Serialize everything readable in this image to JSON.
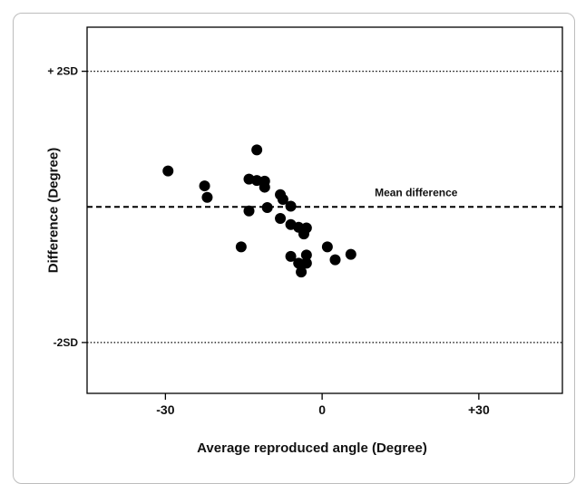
{
  "chart_data": {
    "type": "scatter",
    "title": "",
    "xlabel": "Average reproduced angle (Degree)",
    "ylabel": "Difference (Degree)",
    "xlim": [
      -45,
      46
    ],
    "ylim": [
      -2.75,
      2.65
    ],
    "x_ticks": [
      {
        "value": -30,
        "label": "-30"
      },
      {
        "value": 0,
        "label": "0"
      },
      {
        "value": 30,
        "label": "+30"
      }
    ],
    "y_ticks": [
      {
        "value": 2,
        "label": "+ 2SD"
      },
      {
        "value": -2,
        "label": "-2SD"
      }
    ],
    "grid": false,
    "reference_lines": [
      {
        "name": "upper-limit",
        "y": 2,
        "style": "dotted",
        "label": ""
      },
      {
        "name": "mean-difference",
        "y": 0,
        "style": "dashed",
        "label": "Mean difference"
      },
      {
        "name": "lower-limit",
        "y": -2,
        "style": "dotted",
        "label": ""
      }
    ],
    "points": [
      {
        "x": -29.5,
        "y": 0.53
      },
      {
        "x": -22.5,
        "y": 0.31
      },
      {
        "x": -22.0,
        "y": 0.14
      },
      {
        "x": -12.5,
        "y": 0.84
      },
      {
        "x": -14.0,
        "y": 0.41
      },
      {
        "x": -12.5,
        "y": 0.39
      },
      {
        "x": -11.0,
        "y": 0.38
      },
      {
        "x": -11.0,
        "y": 0.29
      },
      {
        "x": -8.0,
        "y": 0.18
      },
      {
        "x": -7.5,
        "y": 0.11
      },
      {
        "x": -6.0,
        "y": 0.01
      },
      {
        "x": -10.5,
        "y": -0.01
      },
      {
        "x": -14.0,
        "y": -0.06
      },
      {
        "x": -8.0,
        "y": -0.17
      },
      {
        "x": -6.0,
        "y": -0.26
      },
      {
        "x": -4.5,
        "y": -0.3
      },
      {
        "x": -3.0,
        "y": -0.31
      },
      {
        "x": -3.5,
        "y": -0.4
      },
      {
        "x": -15.5,
        "y": -0.59
      },
      {
        "x": 1.0,
        "y": -0.59
      },
      {
        "x": 5.5,
        "y": -0.7
      },
      {
        "x": -6.0,
        "y": -0.73
      },
      {
        "x": -3.0,
        "y": -0.71
      },
      {
        "x": 2.5,
        "y": -0.78
      },
      {
        "x": -4.5,
        "y": -0.83
      },
      {
        "x": -3.0,
        "y": -0.83
      },
      {
        "x": -4.0,
        "y": -0.96
      }
    ]
  }
}
